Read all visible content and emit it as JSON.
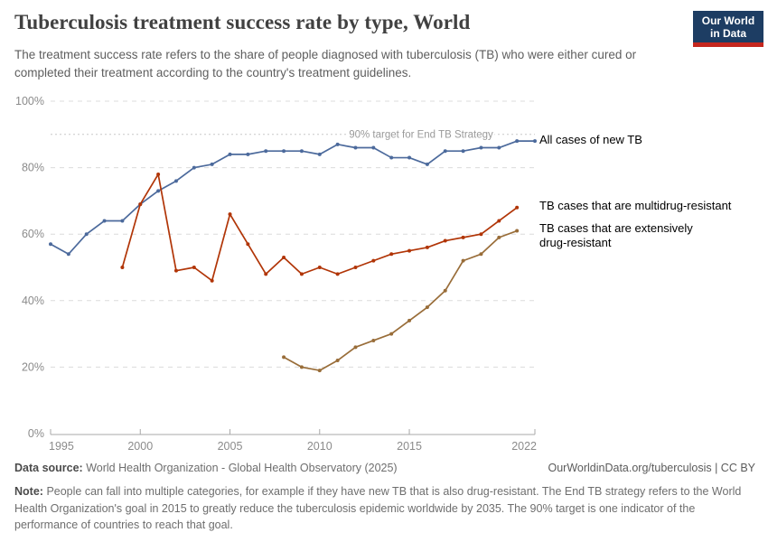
{
  "header": {
    "title": "Tuberculosis treatment success rate by type, World",
    "subtitle": "The treatment success rate refers to the share of people diagnosed with tuberculosis (TB) who were either cured or completed their treatment according to the country's treatment guidelines.",
    "logo": {
      "line1": "Our World",
      "line2": "in Data",
      "bg_color": "#1d3d63",
      "stripe_color": "#c5271e"
    }
  },
  "chart_data": {
    "type": "line",
    "title": "Tuberculosis treatment success rate by type, World",
    "xlabel": "",
    "ylabel": "",
    "xlim": [
      1995,
      2022
    ],
    "ylim": [
      0,
      100
    ],
    "grid": true,
    "legend_position": "right-of-line-ends",
    "x_ticks": [
      1995,
      2000,
      2005,
      2010,
      2015,
      2022
    ],
    "x_tick_labels": [
      "1995",
      "2000",
      "2005",
      "2010",
      "2015",
      "2022"
    ],
    "y_ticks": [
      0,
      20,
      40,
      60,
      80,
      100
    ],
    "y_tick_labels": [
      "0%",
      "20%",
      "40%",
      "60%",
      "80%",
      "100%"
    ],
    "target_line": {
      "value": 90,
      "label": "90% target for End TB Strategy",
      "color": "#c8c8c8",
      "text_color": "#9a9a9a"
    },
    "series": [
      {
        "name": "All cases of new TB",
        "color": "#4C6A9C",
        "years": [
          1995,
          1996,
          1997,
          1998,
          1999,
          2000,
          2001,
          2002,
          2003,
          2004,
          2005,
          2006,
          2007,
          2008,
          2009,
          2010,
          2011,
          2012,
          2013,
          2014,
          2015,
          2016,
          2017,
          2018,
          2019,
          2020,
          2021,
          2022
        ],
        "values": [
          57,
          54,
          60,
          64,
          64,
          69,
          73,
          76,
          80,
          81,
          84,
          84,
          85,
          85,
          85,
          84,
          87,
          86,
          86,
          83,
          83,
          81,
          85,
          85,
          86,
          86,
          88,
          88
        ]
      },
      {
        "name": "TB cases that are multidrug-resistant",
        "color": "#B13507",
        "years": [
          1999,
          2000,
          2001,
          2002,
          2003,
          2004,
          2005,
          2006,
          2007,
          2008,
          2009,
          2010,
          2011,
          2012,
          2013,
          2014,
          2015,
          2016,
          2017,
          2018,
          2019,
          2020,
          2021
        ],
        "values": [
          50,
          69,
          78,
          49,
          50,
          46,
          66,
          57,
          48,
          53,
          48,
          50,
          48,
          50,
          52,
          54,
          55,
          56,
          58,
          59,
          60,
          64,
          68
        ]
      },
      {
        "name": "TB cases that are extensively drug-resistant",
        "label_line1": "TB cases that are extensively",
        "label_line2": "drug-resistant",
        "color": "#996D39",
        "years": [
          2008,
          2009,
          2010,
          2011,
          2012,
          2013,
          2014,
          2015,
          2016,
          2017,
          2018,
          2019,
          2020,
          2021
        ],
        "values": [
          23,
          20,
          19,
          22,
          26,
          28,
          30,
          34,
          38,
          43,
          52,
          54,
          59,
          61
        ]
      }
    ]
  },
  "footer": {
    "data_source_label": "Data source:",
    "data_source_value": "World Health Organization - Global Health Observatory (2025)",
    "link": "OurWorldinData.org/tuberculosis | CC BY",
    "note_label": "Note:",
    "note_text": "People can fall into multiple categories, for example if they have new TB that is also drug-resistant. The End TB strategy refers to the World Health Organization's goal in 2015 to greatly reduce the tuberculosis epidemic worldwide by 2035. The 90% target is one indicator of the performance of countries to reach that goal."
  }
}
